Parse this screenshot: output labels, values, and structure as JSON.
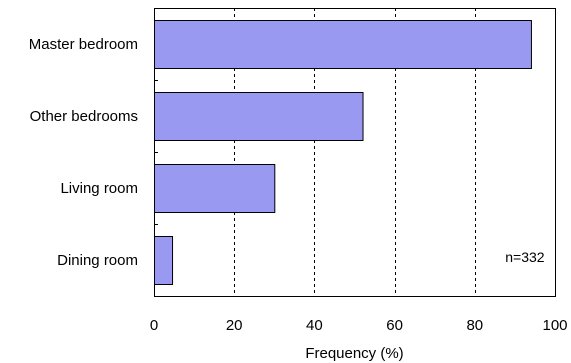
{
  "chart_data": {
    "type": "bar",
    "orientation": "horizontal",
    "categories": [
      "Master bedroom",
      "Other bedrooms",
      "Living room",
      "Dining room"
    ],
    "values": [
      94,
      52,
      30,
      4.5
    ],
    "title": "",
    "xlabel": "Frequency (%)",
    "ylabel": "",
    "xlim": [
      0,
      100
    ],
    "xticks": [
      0,
      20,
      40,
      60,
      80,
      100
    ],
    "xtick_labels": [
      "0",
      "20",
      "40",
      "60",
      "80",
      "100"
    ],
    "grid": "vertical dashed",
    "annotation": "n=332",
    "bar_color": "#9999f2",
    "bar_edge_color": "#000000"
  }
}
